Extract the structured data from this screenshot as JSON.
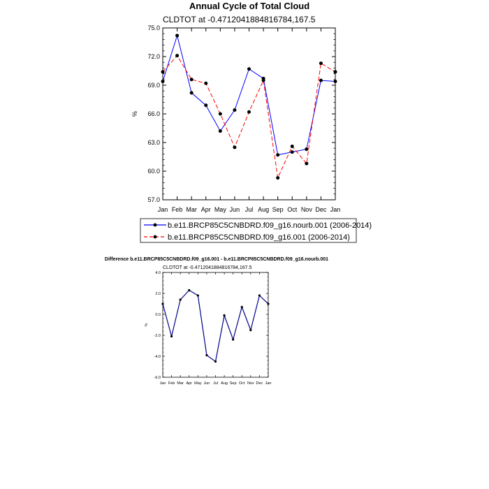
{
  "chart_data": [
    {
      "type": "line",
      "title": "Annual Cycle of Total Cloud",
      "subtitle": "CLDTOT at -0.4712041884816784,167.5",
      "ylabel": "%",
      "xlabel": "",
      "categories": [
        "Jan",
        "Feb",
        "Mar",
        "Apr",
        "May",
        "Jun",
        "Jul",
        "Aug",
        "Sep",
        "Oct",
        "Nov",
        "Dec",
        "Jan"
      ],
      "ylim": [
        57.0,
        75.0
      ],
      "yticks": [
        "57.0",
        "60.0",
        "63.0",
        "66.0",
        "69.0",
        "72.0",
        "75.0"
      ],
      "grid": false,
      "series": [
        {
          "name": "b.e11.BRCP85C5CNBDRD.f09_g16.nourb.001 (2006-2014)",
          "color": "#0000ff",
          "style": "solid",
          "values": [
            69.4,
            74.2,
            68.2,
            66.9,
            64.2,
            66.4,
            70.7,
            69.7,
            61.7,
            62.0,
            62.3,
            69.5,
            69.4
          ]
        },
        {
          "name": "b.e11.BRCP85C5CNBDRD.f09_g16.001 (2006-2014)",
          "color": "#ff0000",
          "style": "dashed",
          "values": [
            70.4,
            72.1,
            69.6,
            69.2,
            66.0,
            62.5,
            66.2,
            69.5,
            59.3,
            62.6,
            60.8,
            71.3,
            70.4
          ]
        }
      ],
      "legend_position": "bottom"
    },
    {
      "type": "line",
      "title": "Difference b.e11.BRCP85C5CNBDRD.f09_g16.001 - b.e11.BRCP85C5CNBDRD.f09_g16.nourb.001",
      "subtitle": "CLDTOT at -0.4712041884816784,167.5",
      "ylabel": "%",
      "xlabel": "",
      "categories": [
        "Jan",
        "Feb",
        "Mar",
        "Apr",
        "May",
        "Jun",
        "Jul",
        "Aug",
        "Sep",
        "Oct",
        "Nov",
        "Dec",
        "Jan"
      ],
      "ylim": [
        -6.0,
        4.0
      ],
      "yticks": [
        "-6.0",
        "-4.0",
        "-2.0",
        "0.0",
        "2.0",
        "4.0"
      ],
      "grid": false,
      "series": [
        {
          "color": "#00008b",
          "style": "solid",
          "values": [
            1.0,
            -2.1,
            1.4,
            2.3,
            1.8,
            -3.9,
            -4.5,
            -0.1,
            -2.4,
            0.7,
            -1.5,
            1.8,
            1.0
          ]
        }
      ]
    }
  ]
}
